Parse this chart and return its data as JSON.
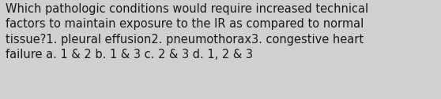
{
  "line1": "Which pathologic conditions would require increased technical",
  "line2": "factors to maintain exposure to the IR as compared to normal",
  "line3": "tissue?1. pleural effusion2. pneumothorax3. congestive heart",
  "line4": "failure a. 1 & 2 b. 1 & 3 c. 2 & 3 d. 1, 2 & 3",
  "background_color": "#d0d0d0",
  "text_color": "#1a1a1a",
  "font_size": 10.5,
  "fig_width": 5.58,
  "fig_height": 1.26,
  "dpi": 100
}
